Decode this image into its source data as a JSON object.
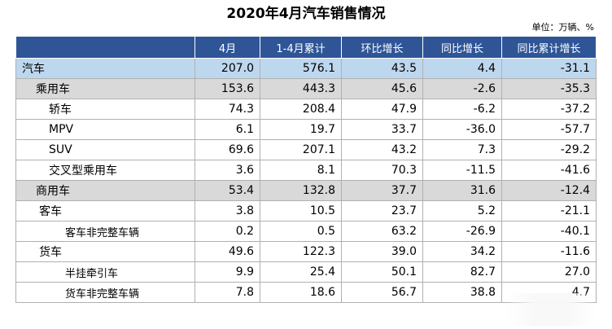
{
  "title": "2020年4月汽车销售情况",
  "unit": "单位：万辆、%",
  "columns": [
    "",
    "4月",
    "1-4月累计",
    "环比增长",
    "同比增长",
    "同比累计增长"
  ],
  "rows": [
    {
      "name": "汽车",
      "level": 0,
      "values": [
        "207.0",
        "576.1",
        "43.5",
        "4.4",
        "-31.1"
      ]
    },
    {
      "name": "乘用车",
      "level": 1,
      "values": [
        "153.6",
        "443.3",
        "45.6",
        "-2.6",
        "-35.3"
      ]
    },
    {
      "name": "轿车",
      "level": 2,
      "values": [
        "74.3",
        "208.4",
        "47.9",
        "-6.2",
        "-37.2"
      ]
    },
    {
      "name": "MPV",
      "level": 2,
      "values": [
        "6.1",
        "19.7",
        "33.7",
        "-36.0",
        "-57.7"
      ]
    },
    {
      "name": "SUV",
      "level": 2,
      "values": [
        "69.6",
        "207.1",
        "43.2",
        "7.3",
        "-29.2"
      ]
    },
    {
      "name": "交叉型乘用车",
      "level": 2,
      "values": [
        "3.6",
        "8.1",
        "70.3",
        "-11.5",
        "-41.6"
      ]
    },
    {
      "name": "商用车",
      "level": 1,
      "values": [
        "53.4",
        "132.8",
        "37.7",
        "31.6",
        "-12.4"
      ]
    },
    {
      "name": "客车",
      "level": 2,
      "values": [
        "3.8",
        "10.5",
        "23.7",
        "5.2",
        "-21.1"
      ]
    },
    {
      "name": "客车非完整车辆",
      "level": 3,
      "values": [
        "0.2",
        "0.5",
        "63.2",
        "-26.9",
        "-40.1"
      ]
    },
    {
      "name": "货车",
      "level": 2,
      "values": [
        "49.6",
        "122.3",
        "39.0",
        "34.2",
        "-11.6"
      ]
    },
    {
      "name": "半挂牵引车",
      "level": 3,
      "values": [
        "9.9",
        "25.4",
        "50.1",
        "82.7",
        "27.0"
      ]
    },
    {
      "name": "货车非完整车辆",
      "level": 3,
      "values": [
        "7.8",
        "18.6",
        "56.7",
        "38.8",
        "4.7"
      ]
    }
  ],
  "colors": {
    "header_bg": "#2f5597",
    "level0_bg": "#bdd7ee",
    "level1_bg": "#d9d9d9"
  }
}
